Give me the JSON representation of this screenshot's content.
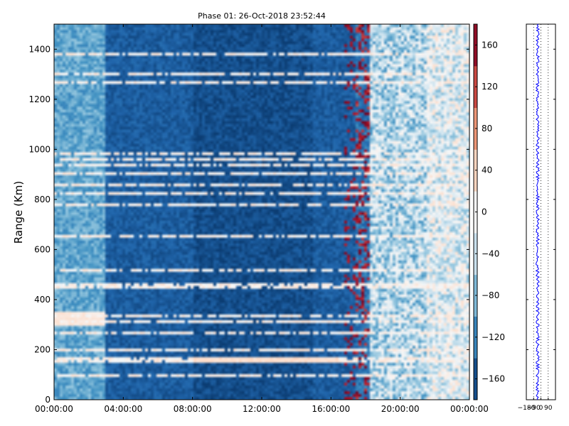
{
  "chart_data": [
    {
      "type": "heatmap",
      "title": "Phase 01: 26-Oct-2018 23:52:44",
      "xlabel": "",
      "ylabel": "Range (Km)",
      "x_tick_labels": [
        "00:00:00",
        "04:00:00",
        "08:00:00",
        "12:00:00",
        "16:00:00",
        "20:00:00",
        "00:00:00"
      ],
      "x_range_hours": [
        0,
        24
      ],
      "y_ticks": [
        0,
        200,
        400,
        600,
        800,
        1000,
        1200,
        1400
      ],
      "ylim": [
        0,
        1500
      ],
      "colorbar": {
        "colormap": "RdBu_r",
        "range": [
          -180,
          180
        ],
        "ticks": [
          160,
          120,
          80,
          40,
          0,
          -40,
          -80,
          -120,
          -160
        ]
      },
      "description_values": {
        "quiet_period_hours": [
          3,
          17.5
        ],
        "quiet_phase_degrees": -150,
        "noisy_period_hours": [
          17.5,
          24
        ],
        "bright_range_bands_km": [
          1380,
          1300,
          985,
          900,
          860,
          455,
          265,
          160
        ],
        "feature_band_km": [
          300,
          350
        ],
        "feature_band_hours": [
          0,
          3
        ]
      }
    },
    {
      "type": "line",
      "title": "",
      "x_tick_labels": [
        "−180",
        "−90",
        "0",
        "90"
      ],
      "xlim": [
        -180,
        180
      ],
      "y_ticks": [
        0,
        200,
        400,
        600,
        800,
        1000,
        1200,
        1400
      ],
      "ylim": [
        0,
        1500
      ],
      "series_color": "#0000ff",
      "mean_phase_degrees": -40,
      "phase_spread_degrees": 20
    }
  ]
}
